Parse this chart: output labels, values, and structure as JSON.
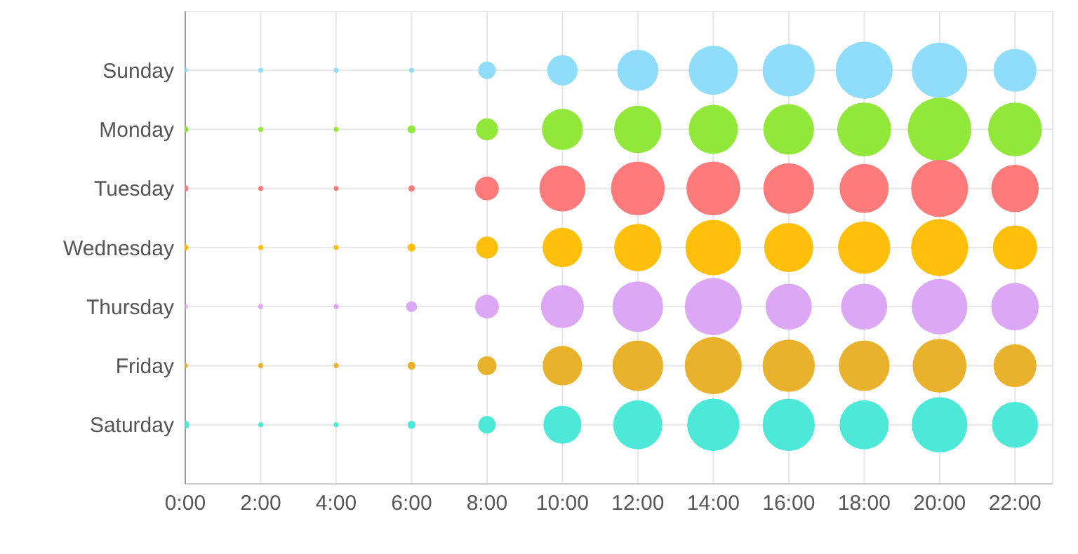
{
  "chart_data": {
    "type": "bubble",
    "orientation": "horizontal",
    "relative": false,
    "legend": false,
    "categories": [
      "Sunday",
      "Monday",
      "Tuesday",
      "Wednesday",
      "Thursday",
      "Friday",
      "Saturday"
    ],
    "xlim": [
      0,
      23
    ],
    "xticks": [
      {
        "value": 0,
        "label": "0:00"
      },
      {
        "value": 2,
        "label": "2:00"
      },
      {
        "value": 4,
        "label": "4:00"
      },
      {
        "value": 6,
        "label": "6:00"
      },
      {
        "value": 8,
        "label": "8:00"
      },
      {
        "value": 10,
        "label": "10:00"
      },
      {
        "value": 12,
        "label": "12:00"
      },
      {
        "value": 14,
        "label": "14:00"
      },
      {
        "value": 16,
        "label": "16:00"
      },
      {
        "value": 18,
        "label": "18:00"
      },
      {
        "value": 20,
        "label": "20:00"
      },
      {
        "value": 22,
        "label": "22:00"
      }
    ],
    "grid": true,
    "series": [
      {
        "colors": [
          "#8fdcfb",
          "#92e83a",
          "#ff7b7b",
          "#ffbf0a",
          "#dca8f5",
          "#e9b22c",
          "#4ee8d8"
        ],
        "values": [
          0,
          0,
          0,
          0,
          0,
          0,
          0
        ],
        "sizes": [
          0.006,
          0.01,
          0.01,
          0.01,
          0.006,
          0.006,
          0.016
        ]
      },
      {
        "colors": [
          "#8fdcfb",
          "#92e83a",
          "#ff7b7b",
          "#ffbf0a",
          "#dca8f5",
          "#e9b22c",
          "#4ee8d8"
        ],
        "values": [
          2,
          2,
          2,
          2,
          2,
          2,
          2
        ],
        "sizes": [
          0.006,
          0.006,
          0.006,
          0.006,
          0.006,
          0.006,
          0.006
        ]
      },
      {
        "colors": [
          "#8fdcfb",
          "#92e83a",
          "#ff7b7b",
          "#ffbf0a",
          "#dca8f5",
          "#e9b22c",
          "#4ee8d8"
        ],
        "values": [
          4,
          4,
          4,
          4,
          4,
          4,
          4
        ],
        "sizes": [
          0.006,
          0.006,
          0.006,
          0.006,
          0.006,
          0.006,
          0.006
        ]
      },
      {
        "colors": [
          "#8fdcfb",
          "#92e83a",
          "#ff7b7b",
          "#ffbf0a",
          "#dca8f5",
          "#e9b22c",
          "#4ee8d8"
        ],
        "values": [
          6,
          6,
          6,
          6,
          6,
          6,
          6
        ],
        "sizes": [
          0.006,
          0.016,
          0.01,
          0.016,
          0.03,
          0.016,
          0.016
        ]
      },
      {
        "colors": [
          "#8fdcfb",
          "#92e83a",
          "#ff7b7b",
          "#ffbf0a",
          "#dca8f5",
          "#e9b22c",
          "#4ee8d8"
        ],
        "values": [
          8,
          8,
          8,
          8,
          8,
          8,
          8
        ],
        "sizes": [
          0.076,
          0.12,
          0.14,
          0.12,
          0.14,
          0.09,
          0.076
        ]
      },
      {
        "colors": [
          "#8fdcfb",
          "#92e83a",
          "#ff7b7b",
          "#ffbf0a",
          "#dca8f5",
          "#e9b22c",
          "#4ee8d8"
        ],
        "values": [
          10,
          10,
          10,
          10,
          10,
          10,
          10
        ],
        "sizes": [
          0.23,
          0.42,
          0.53,
          0.39,
          0.46,
          0.39,
          0.36
        ]
      },
      {
        "colors": [
          "#8fdcfb",
          "#92e83a",
          "#ff7b7b",
          "#ffbf0a",
          "#dca8f5",
          "#e9b22c",
          "#4ee8d8"
        ],
        "values": [
          12,
          12,
          12,
          12,
          12,
          12,
          12
        ],
        "sizes": [
          0.42,
          0.56,
          0.72,
          0.56,
          0.64,
          0.64,
          0.6
        ]
      },
      {
        "colors": [
          "#8fdcfb",
          "#92e83a",
          "#ff7b7b",
          "#ffbf0a",
          "#dca8f5",
          "#e9b22c",
          "#4ee8d8"
        ],
        "values": [
          14,
          14,
          14,
          14,
          14,
          14,
          14
        ],
        "sizes": [
          0.6,
          0.6,
          0.72,
          0.77,
          0.81,
          0.81,
          0.68
        ]
      },
      {
        "colors": [
          "#8fdcfb",
          "#92e83a",
          "#ff7b7b",
          "#ffbf0a",
          "#dca8f5",
          "#e9b22c",
          "#4ee8d8"
        ],
        "values": [
          16,
          16,
          16,
          16,
          16,
          16,
          16
        ],
        "sizes": [
          0.68,
          0.64,
          0.64,
          0.6,
          0.53,
          0.68,
          0.68
        ]
      },
      {
        "colors": [
          "#8fdcfb",
          "#92e83a",
          "#ff7b7b",
          "#ffbf0a",
          "#dca8f5",
          "#e9b22c",
          "#4ee8d8"
        ],
        "values": [
          18,
          18,
          18,
          18,
          18,
          18,
          18
        ],
        "sizes": [
          0.81,
          0.72,
          0.6,
          0.68,
          0.53,
          0.64,
          0.6
        ]
      },
      {
        "colors": [
          "#8fdcfb",
          "#92e83a",
          "#ff7b7b",
          "#ffbf0a",
          "#dca8f5",
          "#e9b22c",
          "#4ee8d8"
        ],
        "values": [
          20,
          20,
          20,
          20,
          20,
          20,
          20
        ],
        "sizes": [
          0.77,
          1,
          0.81,
          0.81,
          0.77,
          0.72,
          0.77
        ]
      },
      {
        "colors": [
          "#8fdcfb",
          "#92e83a",
          "#ff7b7b",
          "#ffbf0a",
          "#dca8f5",
          "#e9b22c",
          "#4ee8d8"
        ],
        "values": [
          22,
          22,
          22,
          22,
          22,
          22,
          22
        ],
        "sizes": [
          0.46,
          0.72,
          0.56,
          0.49,
          0.56,
          0.46,
          0.53
        ]
      }
    ]
  }
}
